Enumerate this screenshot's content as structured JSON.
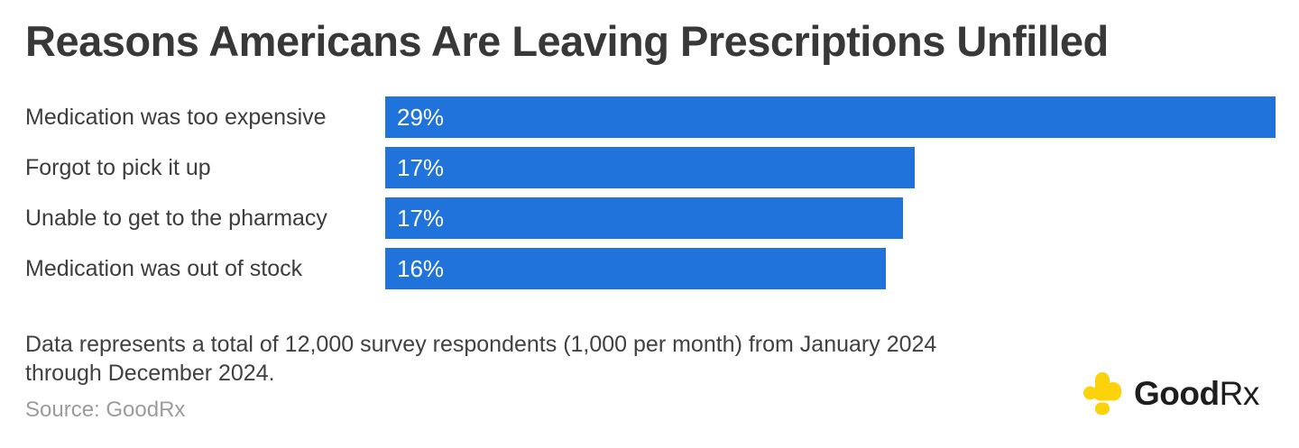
{
  "title": "Reasons Americans Are Leaving Prescriptions Unfilled",
  "chart_data": {
    "type": "bar",
    "orientation": "horizontal",
    "title": "Reasons Americans Are Leaving Prescriptions Unfilled",
    "categories": [
      "Medication was too expensive",
      "Forgot to pick it up",
      "Unable to get to the pharmacy",
      "Medication was out of stock"
    ],
    "values": [
      29,
      17,
      17,
      16
    ],
    "rows": [
      {
        "label": "Medication was too expensive",
        "value": 29,
        "value_label": "29%",
        "bar_width_pct": 100
      },
      {
        "label": "Forgot to pick it up",
        "value": 17,
        "value_label": "17%",
        "bar_width_pct": 59.5
      },
      {
        "label": "Unable to get to the pharmacy",
        "value": 17,
        "value_label": "17%",
        "bar_width_pct": 58.2
      },
      {
        "label": "Medication was out of stock",
        "value": 16,
        "value_label": "16%",
        "bar_width_pct": 56.2
      }
    ],
    "xlim": [
      0,
      29
    ],
    "value_labels_inside_bars": true,
    "grid": false,
    "legend": false,
    "bar_color": "#2173DC",
    "value_label_color": "#FFFFFF"
  },
  "footnote": {
    "line1": "Data represents a total of 12,000 survey respondents (1,000 per month) from January 2024",
    "line2": "through December 2024."
  },
  "source": "Source: GoodRx",
  "logo": {
    "icon": "goodrx-cross-icon",
    "wordmark_bold": "Good",
    "wordmark_regular": "Rx",
    "icon_color": "#FCD20A",
    "text_color": "#1E1E1E"
  },
  "colors": {
    "background": "#FFFFFF",
    "bar": "#2173DC",
    "title_text": "#383838",
    "category_text": "#3D3D3D",
    "footnote_text": "#414141",
    "source_text": "#9C9C9C"
  }
}
